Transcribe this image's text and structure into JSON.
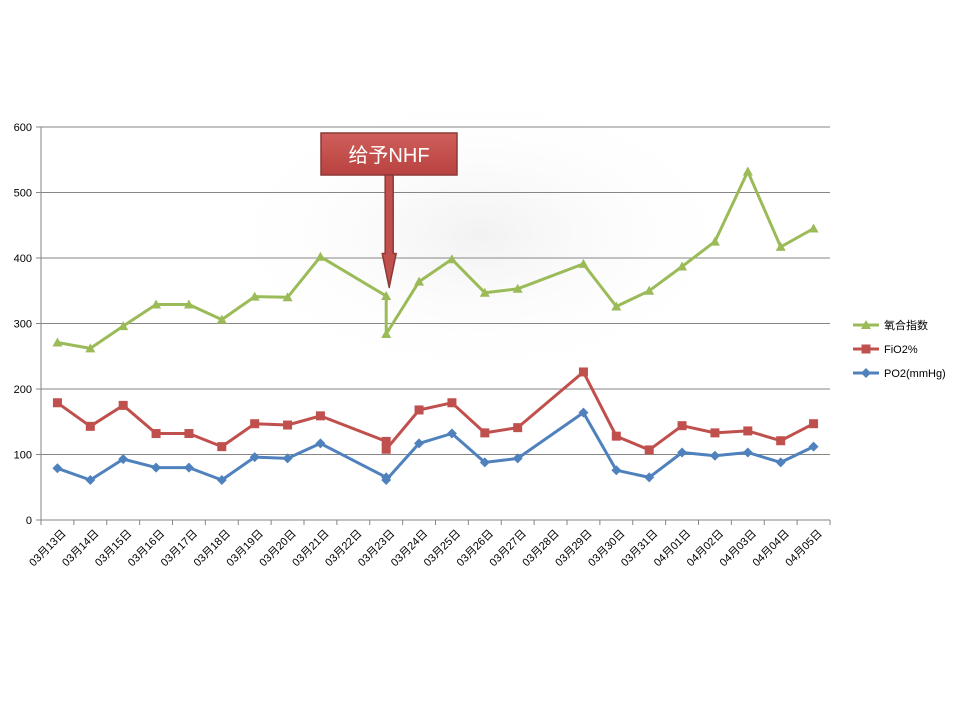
{
  "chart_data": {
    "type": "line",
    "categories": [
      "03月13日",
      "03月14日",
      "03月15日",
      "03月16日",
      "03月17日",
      "03月18日",
      "03月19日",
      "03月20日",
      "03月21日",
      "03月22日",
      "03月23日",
      "03月24日",
      "03月25日",
      "03月26日",
      "03月27日",
      "03月28日",
      "03月29日",
      "03月30日",
      "03月31日",
      "04月01日",
      "04月02日",
      "04月03日",
      "04月04日",
      "04月05日"
    ],
    "series": [
      {
        "name": "氧合指数",
        "color": "#9bbb59",
        "marker": "triangle",
        "points": [
          [
            0,
            271
          ],
          [
            1,
            262
          ],
          [
            2,
            296
          ],
          [
            3,
            329
          ],
          [
            4,
            329
          ],
          [
            5,
            306
          ],
          [
            6,
            341
          ],
          [
            7,
            340
          ],
          [
            8,
            402
          ],
          [
            10,
            342
          ],
          [
            10,
            284
          ],
          [
            11,
            364
          ],
          [
            12,
            398
          ],
          [
            13,
            347
          ],
          [
            14,
            353
          ],
          [
            16,
            391
          ],
          [
            17,
            326
          ],
          [
            18,
            350
          ],
          [
            19,
            387
          ],
          [
            20,
            425
          ],
          [
            21,
            532
          ],
          [
            22,
            417
          ],
          [
            23,
            445
          ]
        ]
      },
      {
        "name": "FiO2%",
        "color": "#c0504d",
        "marker": "square",
        "points": [
          [
            0,
            179
          ],
          [
            1,
            143
          ],
          [
            2,
            175
          ],
          [
            3,
            132
          ],
          [
            4,
            132
          ],
          [
            5,
            112
          ],
          [
            6,
            147
          ],
          [
            7,
            145
          ],
          [
            8,
            159
          ],
          [
            10,
            120
          ],
          [
            10,
            108
          ],
          [
            11,
            168
          ],
          [
            12,
            179
          ],
          [
            13,
            133
          ],
          [
            14,
            141
          ],
          [
            16,
            226
          ],
          [
            17,
            128
          ],
          [
            18,
            107
          ],
          [
            19,
            144
          ],
          [
            20,
            133
          ],
          [
            21,
            136
          ],
          [
            22,
            121
          ],
          [
            23,
            147
          ]
        ]
      },
      {
        "name": "PO2(mmHg)",
        "color": "#4f81bd",
        "marker": "diamond",
        "points": [
          [
            0,
            79
          ],
          [
            1,
            61
          ],
          [
            2,
            93
          ],
          [
            3,
            80
          ],
          [
            4,
            80
          ],
          [
            5,
            61
          ],
          [
            6,
            96
          ],
          [
            7,
            94
          ],
          [
            8,
            117
          ],
          [
            10,
            65
          ],
          [
            10,
            61
          ],
          [
            11,
            117
          ],
          [
            12,
            132
          ],
          [
            13,
            88
          ],
          [
            14,
            94
          ],
          [
            16,
            164
          ],
          [
            17,
            76
          ],
          [
            18,
            65
          ],
          [
            19,
            103
          ],
          [
            20,
            98
          ],
          [
            21,
            103
          ],
          [
            22,
            88
          ],
          [
            23,
            112
          ]
        ]
      }
    ],
    "yticks": [
      "0",
      "100",
      "200",
      "300",
      "400",
      "500",
      "600"
    ],
    "ylim": [
      0,
      600
    ],
    "grid": true,
    "legend": "right",
    "annotation": {
      "text": "给予NHF",
      "category_index": 10,
      "pointing_value": 355
    }
  }
}
